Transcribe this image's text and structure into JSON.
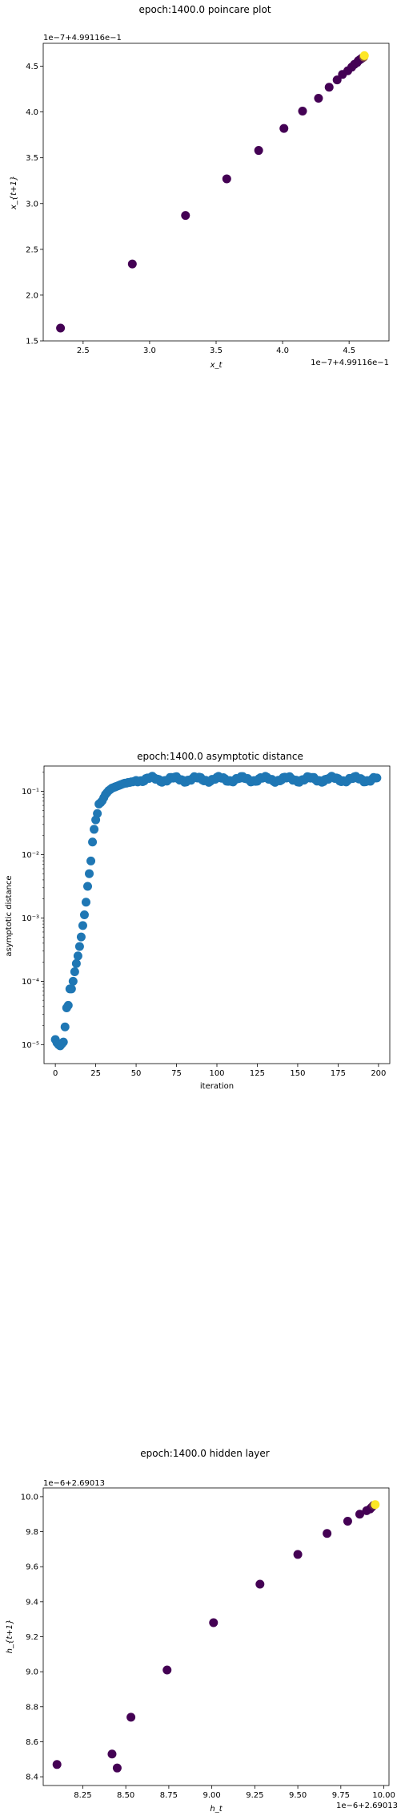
{
  "chart_data": [
    {
      "type": "scatter",
      "title": "epoch:1400.0 poincare plot",
      "xlabel": "x_t",
      "ylabel": "x_{t+1}",
      "x_offset_text": "1e−7+4.99116e−1",
      "y_offset_text": "1e−7+4.99116e−1",
      "xlim": [
        2.2,
        4.8
      ],
      "ylim": [
        1.5,
        4.75
      ],
      "xticks": [
        2.5,
        3.0,
        3.5,
        4.0,
        4.5
      ],
      "xtick_labels": [
        "2.5",
        "3.0",
        "3.5",
        "4.0",
        "4.5"
      ],
      "yticks": [
        1.5,
        2.0,
        2.5,
        3.0,
        3.5,
        4.0,
        4.5
      ],
      "ytick_labels": [
        "1.5",
        "2.0",
        "2.5",
        "3.0",
        "3.5",
        "4.0",
        "4.5"
      ],
      "colormap": [
        "#440154",
        "#fde725"
      ],
      "x": [
        2.33,
        2.87,
        3.27,
        3.58,
        3.82,
        4.01,
        4.15,
        4.27,
        4.35,
        4.41,
        4.45,
        4.49,
        4.52,
        4.54,
        4.56,
        4.57,
        4.58,
        4.59,
        4.6,
        4.61,
        4.615
      ],
      "y": [
        1.64,
        2.34,
        2.87,
        3.27,
        3.58,
        3.82,
        4.01,
        4.15,
        4.27,
        4.35,
        4.41,
        4.45,
        4.49,
        4.52,
        4.54,
        4.56,
        4.57,
        4.58,
        4.59,
        4.6,
        4.615
      ]
    },
    {
      "type": "scatter",
      "title": "epoch:1400.0 asymptotic distance",
      "xlabel": "iteration",
      "ylabel": "asymptotic distance",
      "yscale": "log",
      "xlim": [
        -7,
        207
      ],
      "ylim_log10": [
        -5.3,
        -0.6
      ],
      "xticks": [
        0,
        25,
        50,
        75,
        100,
        125,
        150,
        175,
        200
      ],
      "xtick_labels": [
        "0",
        "25",
        "50",
        "75",
        "100",
        "125",
        "150",
        "175",
        "200"
      ],
      "yticks_log10": [
        -5,
        -4,
        -3,
        -2,
        -1
      ],
      "ytick_labels": [
        "10⁻⁵",
        "10⁻⁴",
        "10⁻³",
        "10⁻²",
        "10⁻¹"
      ],
      "color": "#1f77b4",
      "rise": [
        [
          0,
          -4.92
        ],
        [
          1,
          -4.97
        ],
        [
          2,
          -5.0
        ],
        [
          3,
          -5.02
        ],
        [
          4,
          -4.99
        ],
        [
          5,
          -4.96
        ],
        [
          6,
          -4.72
        ],
        [
          7,
          -4.42
        ],
        [
          8,
          -4.38
        ],
        [
          9,
          -4.12
        ],
        [
          10,
          -4.12
        ],
        [
          11,
          -4.0
        ],
        [
          12,
          -3.85
        ],
        [
          13,
          -3.72
        ],
        [
          14,
          -3.6
        ],
        [
          15,
          -3.45
        ],
        [
          16,
          -3.3
        ],
        [
          17,
          -3.12
        ],
        [
          18,
          -2.95
        ],
        [
          19,
          -2.75
        ],
        [
          20,
          -2.5
        ],
        [
          21,
          -2.3
        ],
        [
          22,
          -2.1
        ],
        [
          23,
          -1.8
        ],
        [
          24,
          -1.6
        ],
        [
          25,
          -1.45
        ],
        [
          26,
          -1.35
        ],
        [
          27,
          -1.2
        ],
        [
          28,
          -1.18
        ],
        [
          29,
          -1.15
        ],
        [
          30,
          -1.1
        ],
        [
          31,
          -1.05
        ],
        [
          32,
          -1.02
        ],
        [
          33,
          -0.99
        ],
        [
          34,
          -0.97
        ],
        [
          35,
          -0.95
        ],
        [
          36,
          -0.94
        ],
        [
          37,
          -0.93
        ],
        [
          38,
          -0.92
        ],
        [
          39,
          -0.91
        ],
        [
          40,
          -0.9
        ],
        [
          41,
          -0.89
        ],
        [
          42,
          -0.88
        ],
        [
          43,
          -0.87
        ],
        [
          44,
          -0.87
        ],
        [
          45,
          -0.86
        ],
        [
          46,
          -0.86
        ],
        [
          47,
          -0.85
        ],
        [
          48,
          -0.85
        ],
        [
          49,
          -0.84
        ]
      ],
      "plateau": {
        "x_start": 50,
        "x_end": 199,
        "level_log10": -0.81,
        "ripple_amplitude": 0.035,
        "ripple_period": 14
      }
    },
    {
      "type": "scatter",
      "title": "epoch:1400.0 hidden layer",
      "xlabel": "h_t",
      "ylabel": "h_{t+1}",
      "x_offset_text": "1e−6+2.69013",
      "y_offset_text": "1e−6+2.69013",
      "xlim": [
        8.02,
        10.03
      ],
      "ylim": [
        8.35,
        10.05
      ],
      "xticks": [
        8.25,
        8.5,
        8.75,
        9.0,
        9.25,
        9.5,
        9.75,
        10.0
      ],
      "xtick_labels": [
        "8.25",
        "8.50",
        "8.75",
        "9.00",
        "9.25",
        "9.50",
        "9.75",
        "10.00"
      ],
      "yticks": [
        8.4,
        8.6,
        8.8,
        9.0,
        9.2,
        9.4,
        9.6,
        9.8,
        10.0
      ],
      "ytick_labels": [
        "8.4",
        "8.6",
        "8.8",
        "9.0",
        "9.2",
        "9.4",
        "9.6",
        "9.8",
        "10.0"
      ],
      "colormap": [
        "#440154",
        "#fde725"
      ],
      "x": [
        8.1,
        8.42,
        8.45,
        8.53,
        8.74,
        9.01,
        9.28,
        9.5,
        9.67,
        9.79,
        9.86,
        9.9,
        9.92,
        9.93,
        9.94,
        9.95
      ],
      "y": [
        8.47,
        8.53,
        8.45,
        8.74,
        9.01,
        9.28,
        9.5,
        9.67,
        9.79,
        9.86,
        9.9,
        9.92,
        9.93,
        9.94,
        9.95,
        9.955
      ]
    }
  ]
}
